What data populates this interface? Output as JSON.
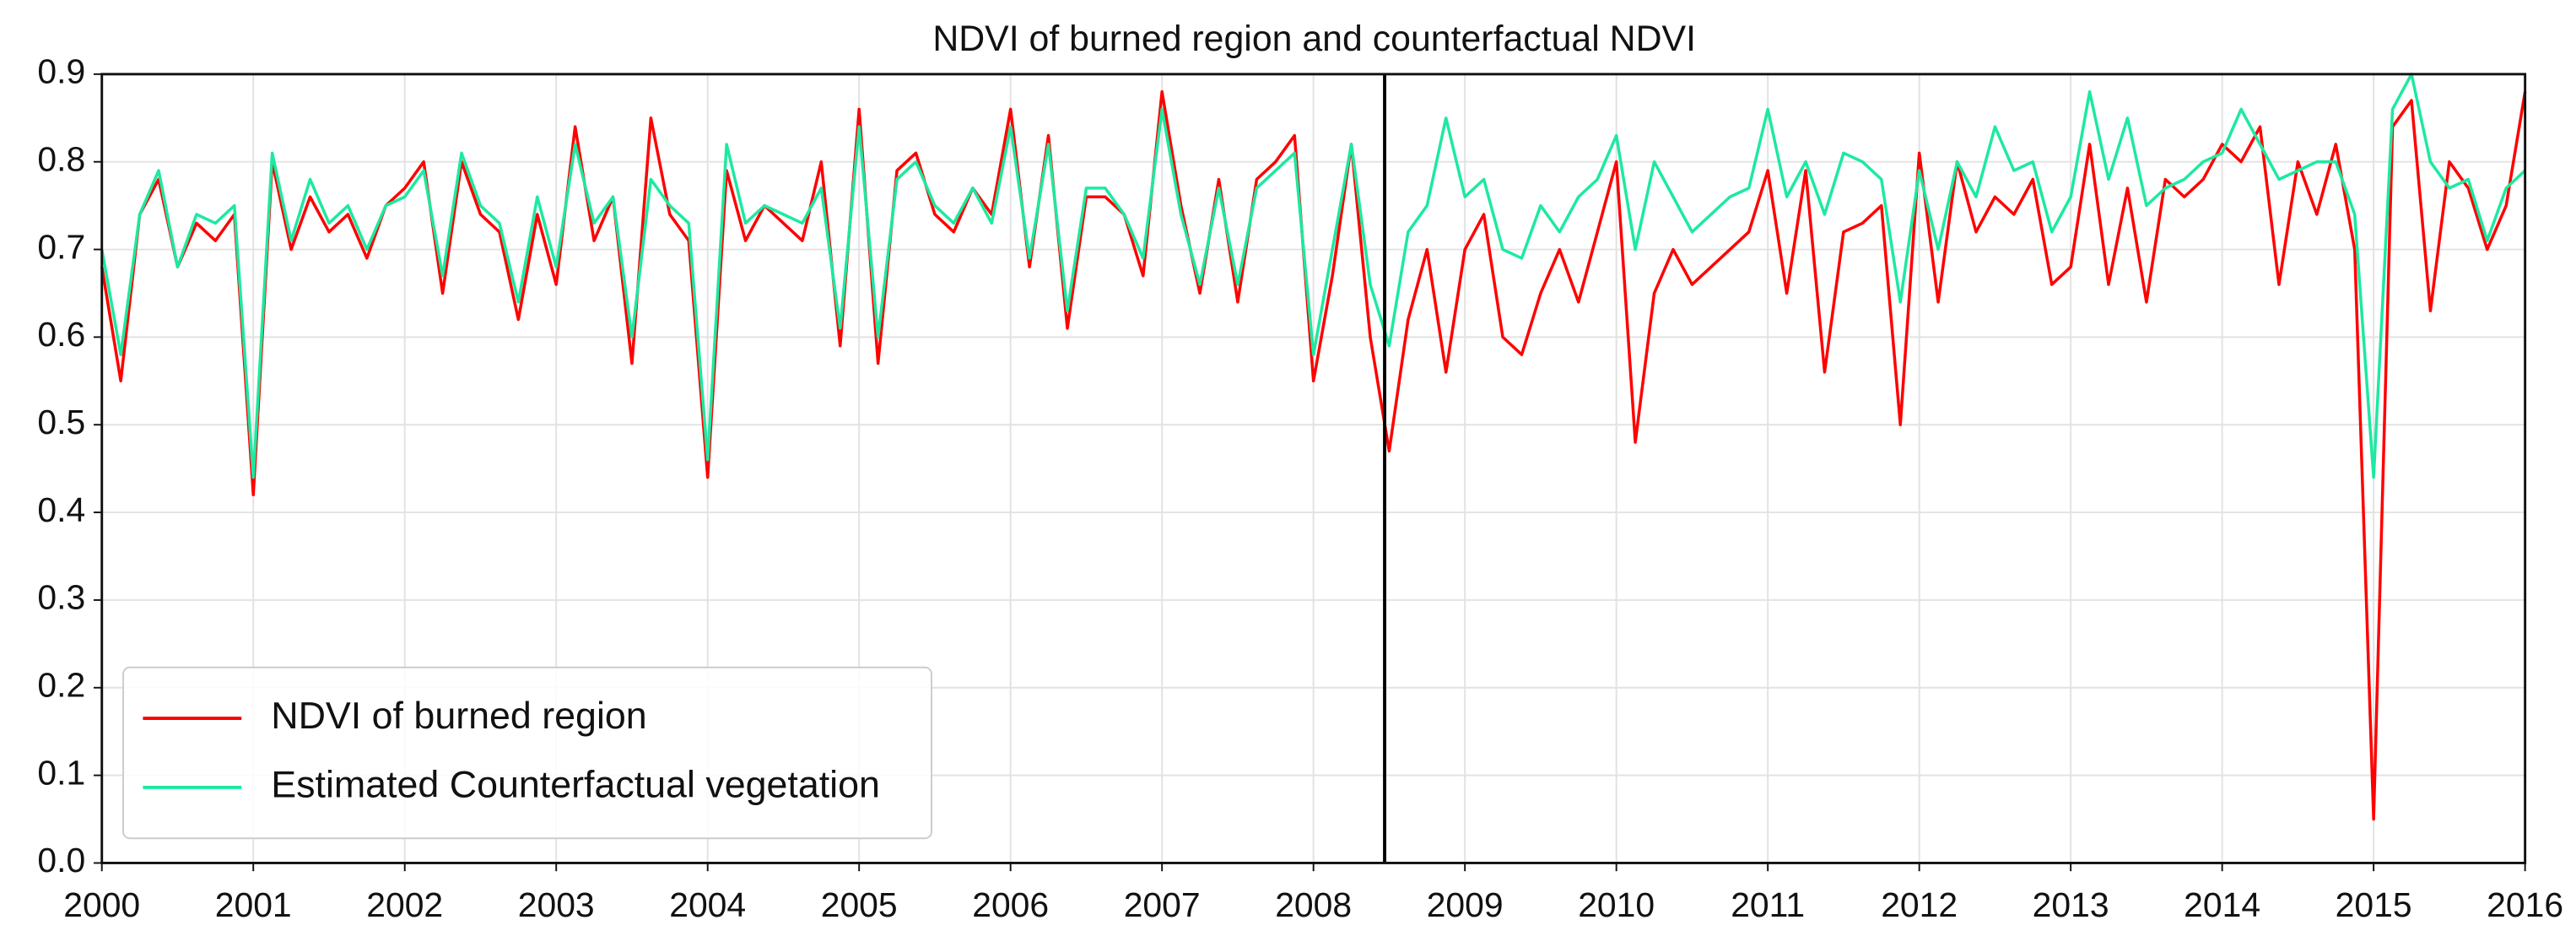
{
  "chart_data": {
    "type": "line",
    "title": "NDVI of burned region and counterfactual NDVI",
    "x": [
      2000,
      2000.125,
      2000.25,
      2000.375,
      2000.5,
      2000.625,
      2000.75,
      2000.875,
      2001,
      2001.125,
      2001.25,
      2001.375,
      2001.5,
      2001.625,
      2001.75,
      2001.875,
      2002,
      2002.125,
      2002.25,
      2002.375,
      2002.5,
      2002.625,
      2002.75,
      2002.875,
      2003,
      2003.125,
      2003.25,
      2003.375,
      2003.5,
      2003.625,
      2003.75,
      2003.875,
      2004,
      2004.125,
      2004.25,
      2004.375,
      2004.5,
      2004.625,
      2004.75,
      2004.875,
      2005,
      2005.125,
      2005.25,
      2005.375,
      2005.5,
      2005.625,
      2005.75,
      2005.875,
      2006,
      2006.125,
      2006.25,
      2006.375,
      2006.5,
      2006.625,
      2006.75,
      2006.875,
      2007,
      2007.125,
      2007.25,
      2007.375,
      2007.5,
      2007.625,
      2007.75,
      2007.875,
      2008,
      2008.125,
      2008.25,
      2008.375,
      2008.5,
      2008.625,
      2008.75,
      2008.875,
      2009,
      2009.125,
      2009.25,
      2009.375,
      2009.5,
      2009.625,
      2009.75,
      2009.875,
      2010,
      2010.125,
      2010.25,
      2010.375,
      2010.5,
      2010.625,
      2010.75,
      2010.875,
      2011,
      2011.125,
      2011.25,
      2011.375,
      2011.5,
      2011.625,
      2011.75,
      2011.875,
      2012,
      2012.125,
      2012.25,
      2012.375,
      2012.5,
      2012.625,
      2012.75,
      2012.875,
      2013,
      2013.125,
      2013.25,
      2013.375,
      2013.5,
      2013.625,
      2013.75,
      2013.875,
      2014,
      2014.125,
      2014.25,
      2014.375,
      2014.5,
      2014.625,
      2014.75,
      2014.875,
      2015,
      2015.125,
      2015.25,
      2015.375,
      2015.5,
      2015.625,
      2015.75,
      2015.875,
      2016
    ],
    "series": [
      {
        "name": "NDVI of burned region",
        "color": "#ff0000",
        "values": [
          0.68,
          0.55,
          0.74,
          0.78,
          0.68,
          0.73,
          0.71,
          0.74,
          0.42,
          0.8,
          0.7,
          0.76,
          0.72,
          0.74,
          0.69,
          0.75,
          0.77,
          0.8,
          0.65,
          0.8,
          0.74,
          0.72,
          0.62,
          0.74,
          0.66,
          0.84,
          0.71,
          0.76,
          0.57,
          0.85,
          0.74,
          0.71,
          0.44,
          0.79,
          0.71,
          0.75,
          0.73,
          0.71,
          0.8,
          0.59,
          0.86,
          0.57,
          0.79,
          0.81,
          0.74,
          0.72,
          0.77,
          0.74,
          0.86,
          0.68,
          0.83,
          0.61,
          0.76,
          0.76,
          0.74,
          0.67,
          0.88,
          0.75,
          0.65,
          0.78,
          0.64,
          0.78,
          0.8,
          0.83,
          0.55,
          0.67,
          0.82,
          0.6,
          0.47,
          0.62,
          0.7,
          0.56,
          0.7,
          0.74,
          0.6,
          0.58,
          0.65,
          0.7,
          0.64,
          0.72,
          0.8,
          0.48,
          0.65,
          0.7,
          0.66,
          0.68,
          0.7,
          0.72,
          0.79,
          0.65,
          0.79,
          0.56,
          0.72,
          0.73,
          0.75,
          0.5,
          0.81,
          0.64,
          0.8,
          0.72,
          0.76,
          0.74,
          0.78,
          0.66,
          0.68,
          0.82,
          0.66,
          0.77,
          0.64,
          0.78,
          0.76,
          0.78,
          0.82,
          0.8,
          0.84,
          0.66,
          0.8,
          0.74,
          0.82,
          0.7,
          0.05,
          0.84,
          0.87,
          0.63,
          0.8,
          0.77,
          0.7,
          0.75,
          0.88
        ]
      },
      {
        "name": "Estimated Counterfactual vegetation",
        "color": "#1de9a0",
        "values": [
          0.7,
          0.58,
          0.74,
          0.79,
          0.68,
          0.74,
          0.73,
          0.75,
          0.44,
          0.81,
          0.71,
          0.78,
          0.73,
          0.75,
          0.7,
          0.75,
          0.76,
          0.79,
          0.67,
          0.81,
          0.75,
          0.73,
          0.64,
          0.76,
          0.68,
          0.82,
          0.73,
          0.76,
          0.6,
          0.78,
          0.75,
          0.73,
          0.46,
          0.82,
          0.73,
          0.75,
          0.74,
          0.73,
          0.77,
          0.61,
          0.84,
          0.6,
          0.78,
          0.8,
          0.75,
          0.73,
          0.77,
          0.73,
          0.84,
          0.69,
          0.82,
          0.63,
          0.77,
          0.77,
          0.74,
          0.69,
          0.86,
          0.74,
          0.66,
          0.77,
          0.66,
          0.77,
          0.79,
          0.81,
          0.58,
          0.7,
          0.82,
          0.66,
          0.59,
          0.72,
          0.75,
          0.85,
          0.76,
          0.78,
          0.7,
          0.69,
          0.75,
          0.72,
          0.76,
          0.78,
          0.83,
          0.7,
          0.8,
          0.76,
          0.72,
          0.74,
          0.76,
          0.77,
          0.86,
          0.76,
          0.8,
          0.74,
          0.81,
          0.8,
          0.78,
          0.64,
          0.79,
          0.7,
          0.8,
          0.76,
          0.84,
          0.79,
          0.8,
          0.72,
          0.76,
          0.88,
          0.78,
          0.85,
          0.75,
          0.77,
          0.78,
          0.8,
          0.81,
          0.86,
          0.82,
          0.78,
          0.79,
          0.8,
          0.8,
          0.74,
          0.44,
          0.86,
          0.9,
          0.8,
          0.77,
          0.78,
          0.71,
          0.77,
          0.79
        ]
      }
    ],
    "vline": 2008.47,
    "xlim": [
      2000,
      2016
    ],
    "xticks": [
      2000,
      2001,
      2002,
      2003,
      2004,
      2005,
      2006,
      2007,
      2008,
      2009,
      2010,
      2011,
      2012,
      2013,
      2014,
      2015,
      2016
    ],
    "ylim": [
      0,
      0.9
    ],
    "yticks": [
      {
        "value": 0,
        "label": "0.0"
      },
      0.1,
      0.2,
      0.3,
      0.4,
      0.5,
      0.6,
      0.7,
      0.8,
      0.9
    ],
    "grid": true,
    "legend": "lower left"
  }
}
